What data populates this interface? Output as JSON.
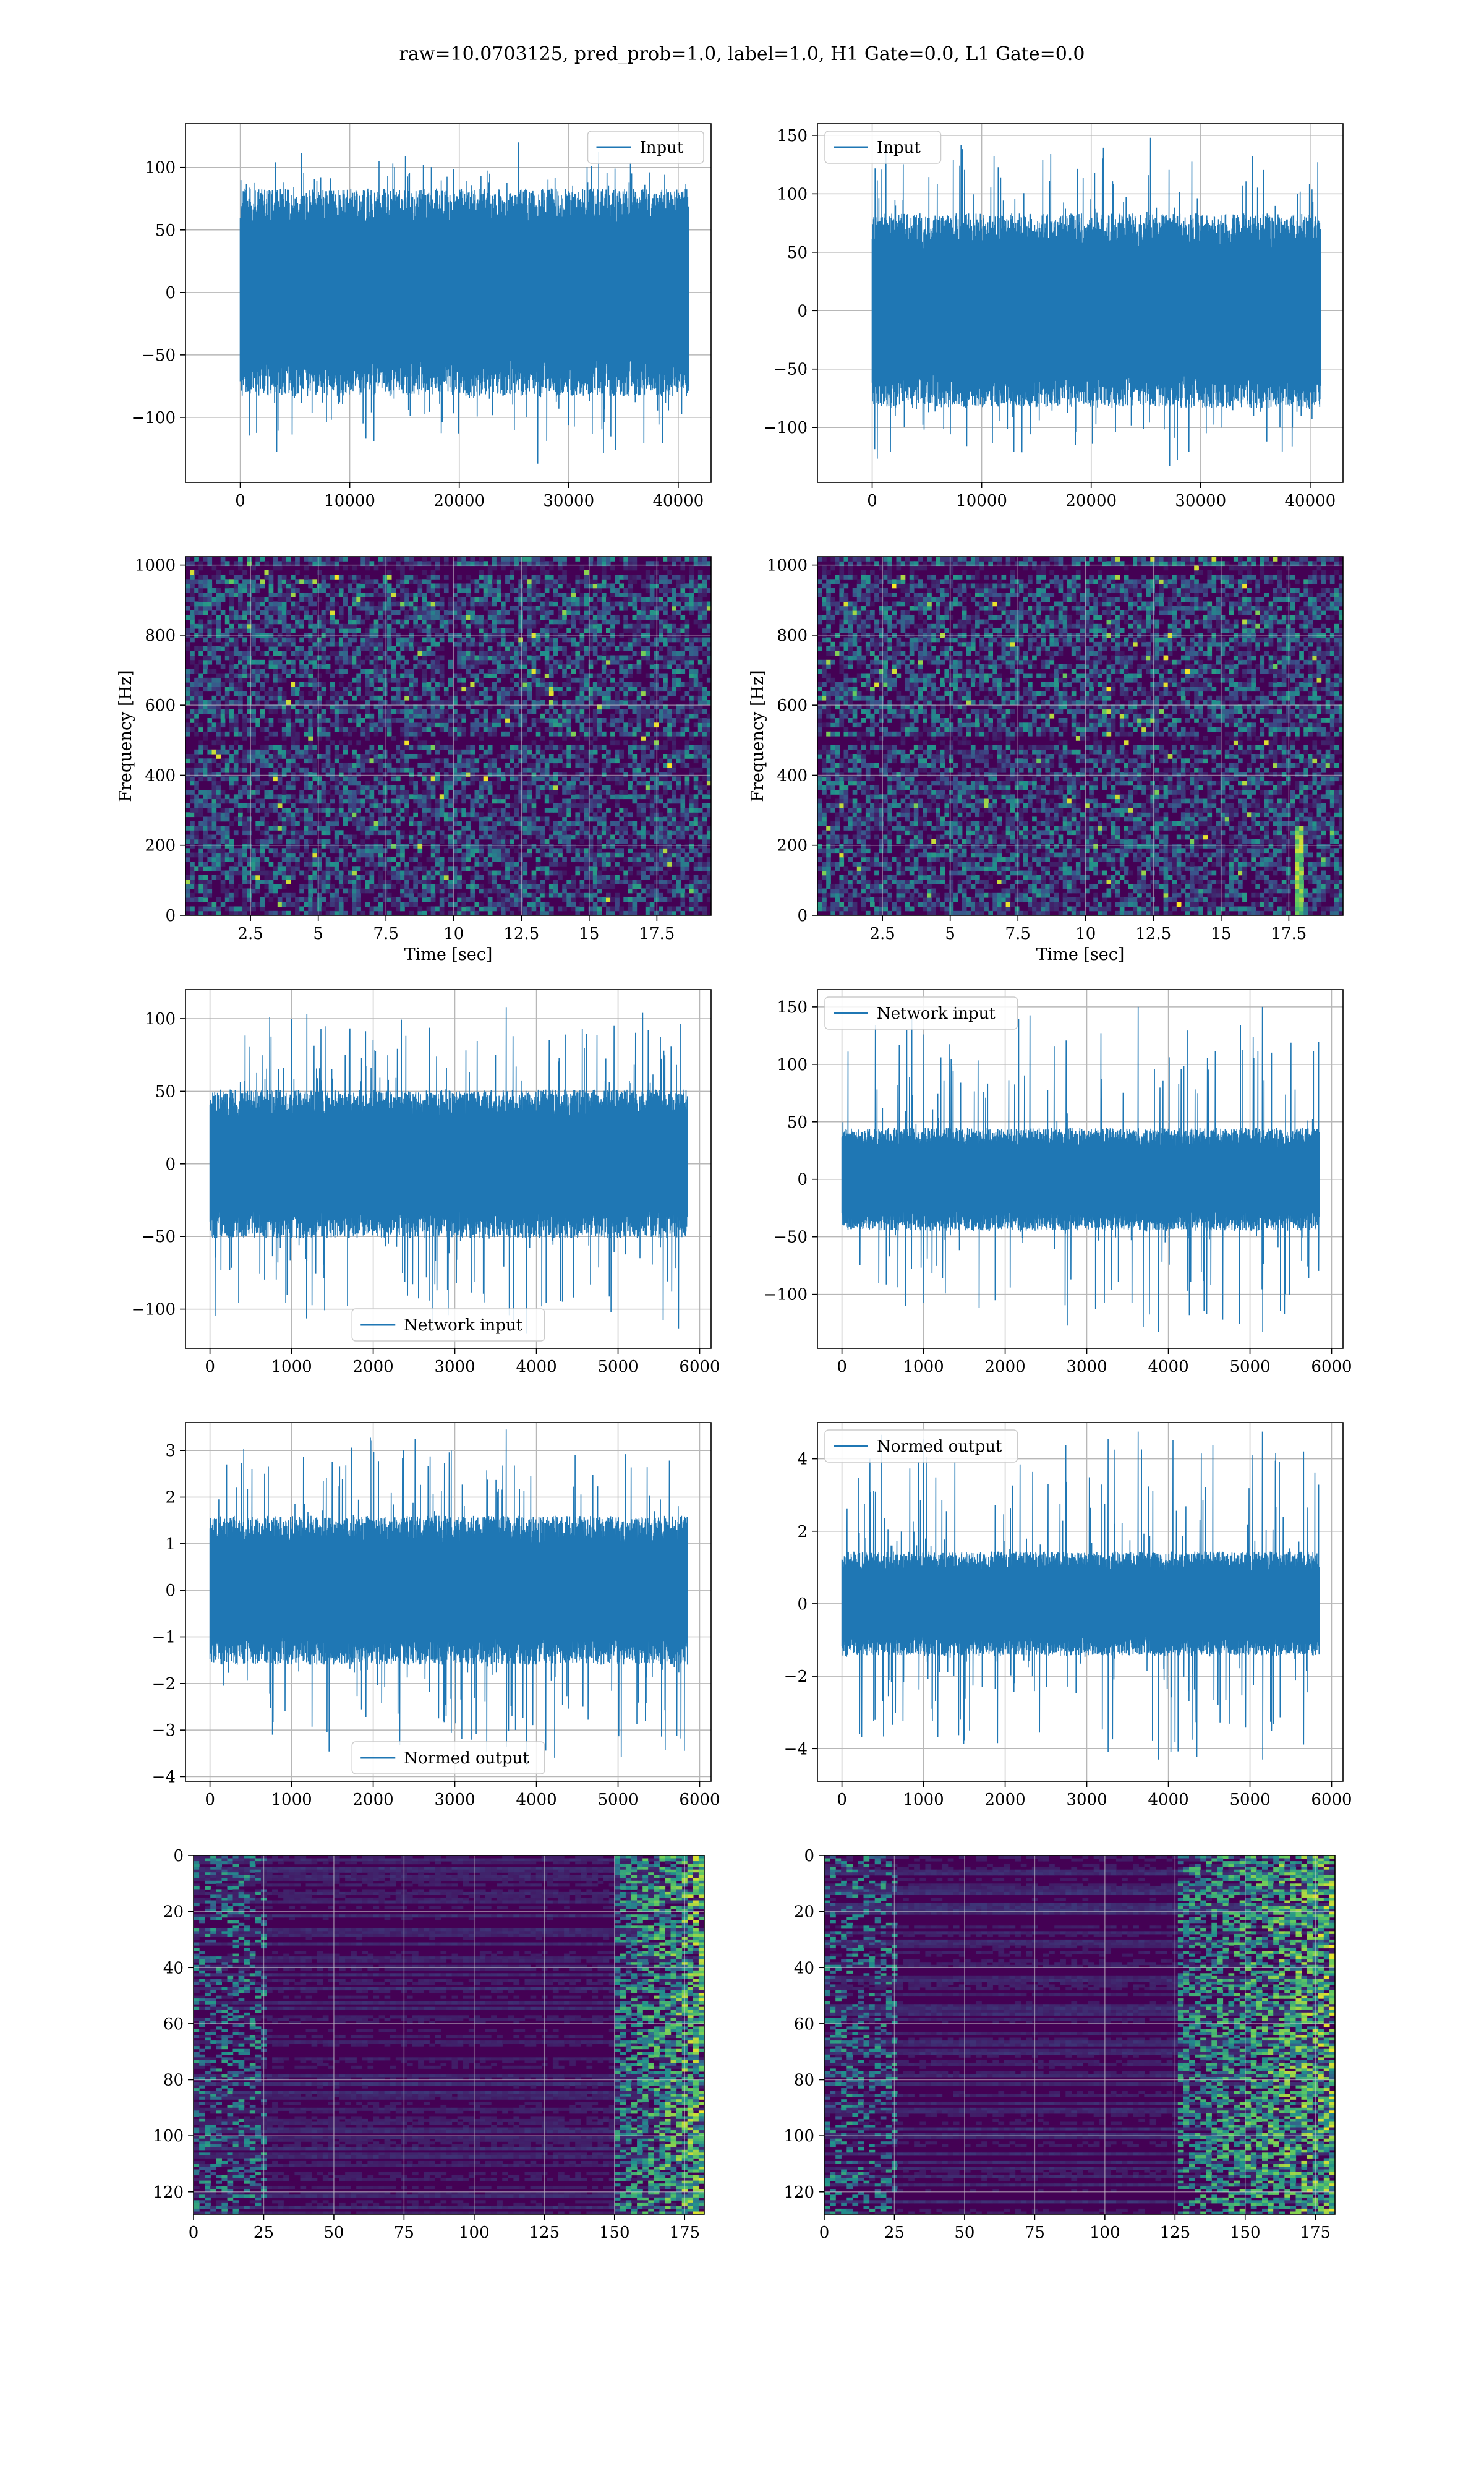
{
  "suptitle": "raw=10.0703125, pred_prob=1.0, label=1.0, H1 Gate=0.0, L1 Gate=0.0",
  "colors": {
    "line": "#1f77b4",
    "heatmap_low": "#440154",
    "heatmap_mid": "#21918c",
    "heatmap_high": "#fde725"
  },
  "chart_data": [
    {
      "type": "line",
      "name": "input-h1",
      "legend": "Input",
      "legend_loc": "top-right",
      "xlim": [
        -5000,
        43000
      ],
      "ylim": [
        -152,
        135
      ],
      "xticks": [
        0,
        10000,
        20000,
        30000,
        40000
      ],
      "yticks": [
        -100,
        -50,
        0,
        50,
        100
      ],
      "xlabel": "",
      "ylabel": "",
      "grid": true,
      "signal": {
        "x_range": [
          0,
          40960
        ],
        "band": 52,
        "spike_max": 120,
        "spike_min": -137
      }
    },
    {
      "type": "line",
      "name": "input-l1",
      "legend": "Input",
      "legend_loc": "top-left",
      "xlim": [
        -5000,
        43000
      ],
      "ylim": [
        -147,
        160
      ],
      "xticks": [
        0,
        10000,
        20000,
        30000,
        40000
      ],
      "yticks": [
        -100,
        -50,
        0,
        50,
        100,
        150
      ],
      "xlabel": "",
      "ylabel": "",
      "grid": true,
      "signal": {
        "x_range": [
          0,
          40960
        ],
        "band": 52,
        "spike_max": 148,
        "spike_min": -133
      }
    },
    {
      "type": "heatmap",
      "name": "spectrogram-h1",
      "xlim": [
        0.1,
        19.5
      ],
      "ylim": [
        0,
        1024
      ],
      "xticks": [
        2.5,
        5.0,
        7.5,
        10.0,
        12.5,
        15.0,
        17.5
      ],
      "yticks": [
        0,
        200,
        400,
        600,
        800,
        1000
      ],
      "xlabel": "Time [sec]",
      "ylabel": "Frequency [Hz]",
      "grid": true,
      "style": "spectrogram",
      "dark_bands_hz": [
        500,
        985
      ]
    },
    {
      "type": "heatmap",
      "name": "spectrogram-l1",
      "xlim": [
        0.1,
        19.5
      ],
      "ylim": [
        0,
        1024
      ],
      "xticks": [
        2.5,
        5.0,
        7.5,
        10.0,
        12.5,
        15.0,
        17.5
      ],
      "yticks": [
        0,
        200,
        400,
        600,
        800,
        1000
      ],
      "xlabel": "Time [sec]",
      "ylabel": "Frequency [Hz]",
      "grid": true,
      "style": "spectrogram",
      "dark_bands_hz": [
        500,
        985
      ],
      "bright_track_sec": 17.8
    },
    {
      "type": "line",
      "name": "network-input-h1",
      "legend": "Network input",
      "legend_loc": "bottom-center",
      "xlim": [
        -300,
        6140
      ],
      "ylim": [
        -127,
        120
      ],
      "xticks": [
        0,
        1000,
        2000,
        3000,
        4000,
        5000,
        6000
      ],
      "yticks": [
        -100,
        -50,
        0,
        50,
        100
      ],
      "xlabel": "",
      "ylabel": "",
      "grid": true,
      "signal": {
        "x_range": [
          0,
          5850
        ],
        "band": 32,
        "spike_max": 108,
        "spike_min": -117
      }
    },
    {
      "type": "line",
      "name": "network-input-l1",
      "legend": "Network input",
      "legend_loc": "top-left",
      "xlim": [
        -300,
        6140
      ],
      "ylim": [
        -147,
        165
      ],
      "xticks": [
        0,
        1000,
        2000,
        3000,
        4000,
        5000,
        6000
      ],
      "yticks": [
        -100,
        -50,
        0,
        50,
        100,
        150
      ],
      "xlabel": "",
      "ylabel": "",
      "grid": true,
      "signal": {
        "x_range": [
          0,
          5850
        ],
        "band": 28,
        "spike_max": 150,
        "spike_min": -133,
        "burst_at": 5150
      }
    },
    {
      "type": "line",
      "name": "normed-output-h1",
      "legend": "Normed output",
      "legend_loc": "bottom-center",
      "xlim": [
        -300,
        6140
      ],
      "ylim": [
        -4.1,
        3.6
      ],
      "xticks": [
        0,
        1000,
        2000,
        3000,
        4000,
        5000,
        6000
      ],
      "yticks": [
        -4,
        -3,
        -2,
        -1,
        0,
        1,
        2,
        3
      ],
      "xlabel": "",
      "ylabel": "",
      "grid": true,
      "signal": {
        "x_range": [
          0,
          5850
        ],
        "band": 1.0,
        "spike_max": 3.45,
        "spike_min": -3.75
      }
    },
    {
      "type": "line",
      "name": "normed-output-l1",
      "legend": "Normed output",
      "legend_loc": "top-left",
      "xlim": [
        -300,
        6140
      ],
      "ylim": [
        -4.9,
        5.0
      ],
      "xticks": [
        0,
        1000,
        2000,
        3000,
        4000,
        5000,
        6000
      ],
      "yticks": [
        -4,
        -2,
        0,
        2,
        4
      ],
      "xlabel": "",
      "ylabel": "",
      "grid": true,
      "signal": {
        "x_range": [
          0,
          5850
        ],
        "band": 0.9,
        "spike_max": 4.75,
        "spike_min": -4.3,
        "burst_at": 5150
      }
    },
    {
      "type": "heatmap",
      "name": "feature-map-h1",
      "xlim": [
        0,
        182
      ],
      "ylim": [
        128,
        0
      ],
      "xticks": [
        0,
        25,
        50,
        75,
        100,
        125,
        150,
        175
      ],
      "yticks": [
        0,
        20,
        40,
        60,
        80,
        100,
        120
      ],
      "xlabel": "",
      "ylabel": "",
      "grid": true,
      "style": "feature",
      "bright_cols": [
        150,
        182
      ]
    },
    {
      "type": "heatmap",
      "name": "feature-map-l1",
      "xlim": [
        0,
        182
      ],
      "ylim": [
        128,
        0
      ],
      "xticks": [
        0,
        25,
        50,
        75,
        100,
        125,
        150,
        175
      ],
      "yticks": [
        0,
        20,
        40,
        60,
        80,
        100,
        120
      ],
      "xlabel": "",
      "ylabel": "",
      "grid": true,
      "style": "feature",
      "bright_cols": [
        125,
        182
      ]
    }
  ]
}
